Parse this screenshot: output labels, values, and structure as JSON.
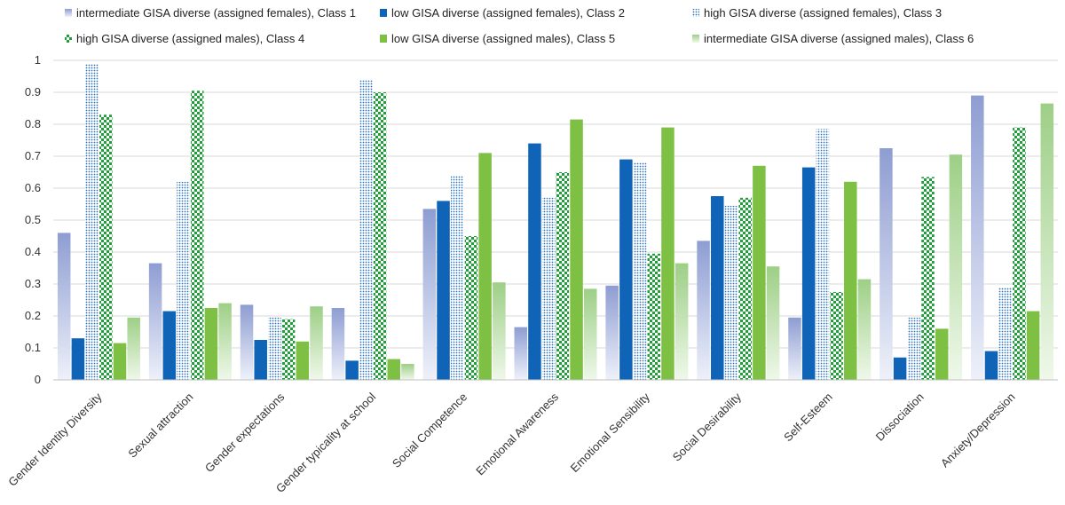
{
  "chart_data": {
    "type": "bar",
    "title": "",
    "xlabel": "",
    "ylabel": "",
    "ylim": [
      0,
      1
    ],
    "yticks": [
      "0",
      "0.1",
      "0.2",
      "0.3",
      "0.4",
      "0.5",
      "0.6",
      "0.7",
      "0.8",
      "0.9",
      "1"
    ],
    "grid": true,
    "legend_position": "top",
    "categories": [
      "Gender Identity Diversity",
      "Sexual attraction",
      "Gender expectations",
      "Gender typicality at school",
      "Social Competence",
      "Emotional Awareness",
      "Emotional Sensibility",
      "Social Desirability",
      "Self-Esteem",
      "Dissociation",
      "Anxiety/Depression"
    ],
    "series": [
      {
        "name": "intermediate GISA diverse (assigned females), Class 1",
        "color": "#8f9fd4",
        "pattern": "gradient",
        "values": [
          0.46,
          0.365,
          0.235,
          0.225,
          0.535,
          0.165,
          0.295,
          0.435,
          0.195,
          0.725,
          0.89
        ]
      },
      {
        "name": "low GISA diverse (assigned females), Class 2",
        "color": "#0f64b8",
        "pattern": "solid",
        "values": [
          0.13,
          0.215,
          0.125,
          0.06,
          0.56,
          0.74,
          0.69,
          0.575,
          0.665,
          0.07,
          0.09
        ]
      },
      {
        "name": "high GISA diverse (assigned females), Class 3",
        "color": "#3878c0",
        "pattern": "dots",
        "values": [
          0.99,
          0.62,
          0.195,
          0.94,
          0.64,
          0.57,
          0.68,
          0.545,
          0.785,
          0.195,
          0.29
        ]
      },
      {
        "name": "high GISA diverse (assigned males), Class 4",
        "color": "#22a03c",
        "pattern": "bigdots",
        "values": [
          0.83,
          0.905,
          0.19,
          0.9,
          0.45,
          0.65,
          0.395,
          0.57,
          0.275,
          0.635,
          0.79
        ]
      },
      {
        "name": "low GISA diverse (assigned males), Class 5",
        "color": "#7ec044",
        "pattern": "solid",
        "values": [
          0.115,
          0.225,
          0.12,
          0.065,
          0.71,
          0.815,
          0.79,
          0.67,
          0.62,
          0.16,
          0.215
        ]
      },
      {
        "name": "intermediate GISA diverse (assigned males), Class 6",
        "color": "#9fd18a",
        "pattern": "gradient",
        "values": [
          0.195,
          0.24,
          0.23,
          0.05,
          0.305,
          0.285,
          0.365,
          0.355,
          0.315,
          0.705,
          0.865
        ]
      }
    ]
  }
}
